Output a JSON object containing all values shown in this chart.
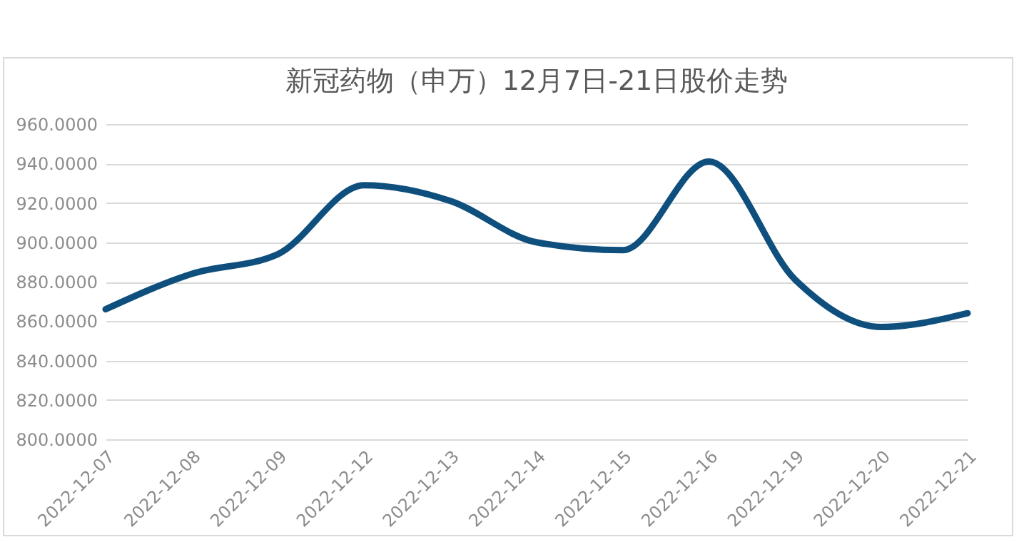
{
  "chart_data": {
    "type": "line",
    "title": "新冠药物（申万）12月7日-21日股价走势",
    "categories": [
      "2022-12-07",
      "2022-12-08",
      "2022-12-09",
      "2022-12-12",
      "2022-12-13",
      "2022-12-14",
      "2022-12-15",
      "2022-12-16",
      "2022-12-19",
      "2022-12-20",
      "2022-12-21"
    ],
    "series": [
      {
        "color": "#0f4f7d",
        "values": [
          866,
          884,
          894,
          929,
          921,
          900,
          896,
          941,
          881,
          857,
          864
        ]
      }
    ],
    "ylim": [
      800,
      960
    ],
    "yticks": [
      {
        "value": 800,
        "label": "800.0000"
      },
      {
        "value": 820,
        "label": "820.0000"
      },
      {
        "value": 840,
        "label": "840.0000"
      },
      {
        "value": 860,
        "label": "860.0000"
      },
      {
        "value": 880,
        "label": "880.0000"
      },
      {
        "value": 900,
        "label": "900.0000"
      },
      {
        "value": 920,
        "label": "920.0000"
      },
      {
        "value": 940,
        "label": "940.0000"
      },
      {
        "value": 960,
        "label": "960.0000"
      }
    ],
    "grid": "y",
    "legend": false,
    "marker": "none",
    "line_style": "solid"
  }
}
